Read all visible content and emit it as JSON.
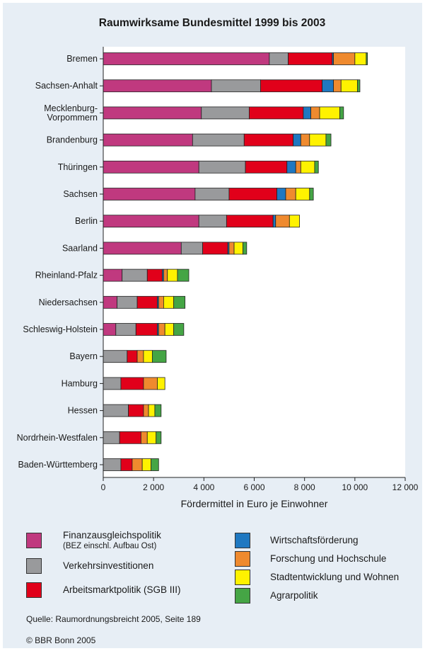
{
  "chart_data": {
    "type": "bar",
    "orientation": "horizontal",
    "stacked": true,
    "title": "Raumwirksame Bundesmittel 1999 bis 2003",
    "xlabel": "Fördermittel in Euro je Einwohner",
    "xlim": [
      0,
      12000
    ],
    "xticks": [
      0,
      2000,
      4000,
      6000,
      8000,
      10000,
      12000
    ],
    "xtick_labels": [
      "0",
      "2 000",
      "4 000",
      "6 000",
      "8 000",
      "10 000",
      "12 000"
    ],
    "grid": false,
    "categories": [
      "Bremen",
      "Sachsen-Anhalt",
      "Mecklenburg-\nVorpommern",
      "Brandenburg",
      "Thüringen",
      "Sachsen",
      "Berlin",
      "Saarland",
      "Rheinland-Pfalz",
      "Niedersachsen",
      "Schleswig-Holstein",
      "Bayern",
      "Hamburg",
      "Hessen",
      "Nordrhein-Westfalen",
      "Baden-Württemberg"
    ],
    "series": [
      {
        "name": "Finanzausgleichspolitik",
        "color": "#c0397f",
        "values": [
          6600,
          4300,
          3900,
          3550,
          3800,
          3650,
          3800,
          3100,
          750,
          550,
          500,
          0,
          0,
          0,
          0,
          0
        ]
      },
      {
        "name": "Verkehrsinvestitionen",
        "color": "#999a9c",
        "values": [
          750,
          1950,
          1900,
          2050,
          1850,
          1350,
          1100,
          850,
          1000,
          800,
          800,
          950,
          700,
          1000,
          650,
          700
        ]
      },
      {
        "name": "Arbeitsmarktpolitik (SGB III)",
        "color": "#e1001a",
        "values": [
          1750,
          2450,
          2150,
          1950,
          1650,
          1900,
          1850,
          1000,
          600,
          800,
          850,
          400,
          900,
          600,
          850,
          450
        ]
      },
      {
        "name": "Wirtschaftsförderung",
        "color": "#1f78c1",
        "values": [
          50,
          450,
          300,
          300,
          350,
          350,
          100,
          50,
          50,
          50,
          50,
          0,
          0,
          0,
          0,
          0
        ]
      },
      {
        "name": "Forschung und Hochschule",
        "color": "#ef8a2e",
        "values": [
          850,
          300,
          350,
          350,
          200,
          400,
          550,
          200,
          150,
          200,
          250,
          250,
          550,
          200,
          250,
          400
        ]
      },
      {
        "name": "Stadtentwicklung und Wohnen",
        "color": "#fff200",
        "values": [
          450,
          650,
          800,
          650,
          550,
          550,
          400,
          350,
          400,
          400,
          350,
          350,
          300,
          250,
          350,
          350
        ]
      },
      {
        "name": "Agrarpolitik",
        "color": "#45a545",
        "values": [
          50,
          100,
          150,
          200,
          150,
          150,
          0,
          150,
          450,
          450,
          400,
          550,
          0,
          250,
          200,
          300
        ]
      }
    ]
  },
  "legend": {
    "items": [
      {
        "label": "Finanzausgleichspolitik",
        "sublabel": "(BEZ einschl. Aufbau Ost)",
        "color": "#c0397f"
      },
      {
        "label": "Verkehrsinvestitionen",
        "color": "#999a9c"
      },
      {
        "label": "Arbeitsmarktpolitik (SGB III)",
        "color": "#e1001a"
      },
      {
        "label": "Wirtschaftsförderung",
        "color": "#1f78c1"
      },
      {
        "label": "Forschung und Hochschule",
        "color": "#ef8a2e"
      },
      {
        "label": "Stadtentwicklung und Wohnen",
        "color": "#fff200"
      },
      {
        "label": "Agrarpolitik",
        "color": "#45a545"
      }
    ]
  },
  "source": "Quelle: Raumordnungsbreicht 2005, Seite 189",
  "copyright": "© BBR Bonn 2005",
  "colors": {
    "background": "#e7eef5",
    "plot_background": "#ffffff"
  }
}
